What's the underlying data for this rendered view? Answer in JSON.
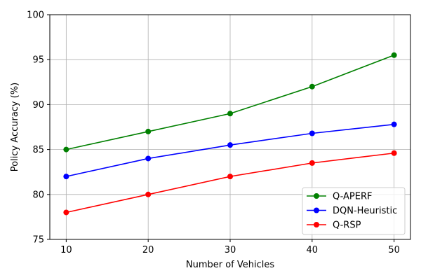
{
  "chart_data": {
    "type": "line",
    "title": "",
    "xlabel": "Number of Vehicles",
    "ylabel": "Policy Accuracy (%)",
    "x": [
      10,
      20,
      30,
      40,
      50
    ],
    "xlim": [
      8,
      52
    ],
    "ylim": [
      75,
      100
    ],
    "xticks": [
      10,
      20,
      30,
      40,
      50
    ],
    "yticks": [
      75,
      80,
      85,
      90,
      95,
      100
    ],
    "grid": true,
    "legend_position": "lower-right",
    "series": [
      {
        "name": "Q-APERF",
        "color": "#008000",
        "marker": "circle",
        "values": [
          85,
          87,
          89,
          92,
          95.5
        ]
      },
      {
        "name": "DQN-Heuristic",
        "color": "#0000ff",
        "marker": "circle",
        "values": [
          82,
          84,
          85.5,
          86.8,
          87.8
        ]
      },
      {
        "name": "Q-RSP",
        "color": "#ff0000",
        "marker": "circle",
        "values": [
          78,
          80,
          82,
          83.5,
          84.6
        ]
      }
    ]
  }
}
